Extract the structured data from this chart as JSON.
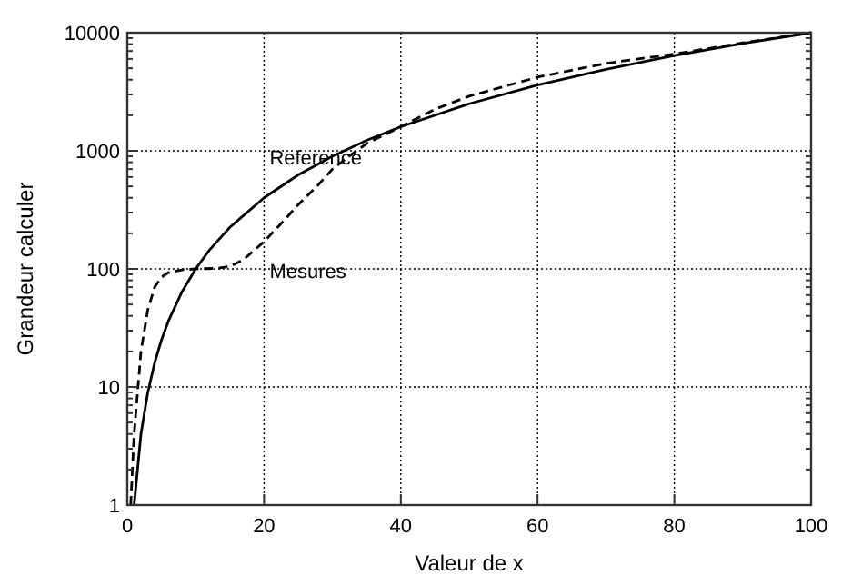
{
  "chart_data": {
    "type": "line",
    "xlabel": "Valeur de x",
    "ylabel": "Grandeur  calculer",
    "log": "y",
    "grid": true,
    "legend": false,
    "xlim": [
      0,
      100
    ],
    "xticks": [
      0,
      20,
      40,
      60,
      80,
      100
    ],
    "ylim": [
      1,
      10000
    ],
    "yticks": [
      1,
      10,
      100,
      1000,
      10000
    ],
    "series": [
      {
        "name": "Reference",
        "color": "#000000",
        "line_style": "solid",
        "x": [
          1,
          2,
          3,
          4,
          5,
          6,
          8,
          10,
          12,
          15,
          20,
          25,
          30,
          35,
          40,
          50,
          60,
          70,
          80,
          90,
          100
        ],
        "values": [
          1,
          4,
          9,
          16,
          25,
          36,
          64,
          100,
          144,
          225,
          400,
          625,
          900,
          1225,
          1600,
          2500,
          3600,
          4900,
          6400,
          8100,
          10000
        ]
      },
      {
        "name": "Mesures",
        "color": "#000000",
        "line_style": "dashed",
        "x": [
          0.5,
          1,
          2,
          3,
          4,
          5,
          6,
          8,
          10,
          13,
          15,
          17,
          20,
          23,
          25,
          28,
          30,
          33,
          35,
          40,
          45,
          50,
          60,
          70,
          80,
          90,
          100
        ],
        "values": [
          1,
          4,
          20,
          45,
          70,
          85,
          93,
          98,
          100,
          101,
          105,
          120,
          170,
          260,
          350,
          520,
          700,
          950,
          1150,
          1600,
          2250,
          2900,
          4200,
          5500,
          6600,
          8200,
          10000
        ]
      }
    ]
  }
}
